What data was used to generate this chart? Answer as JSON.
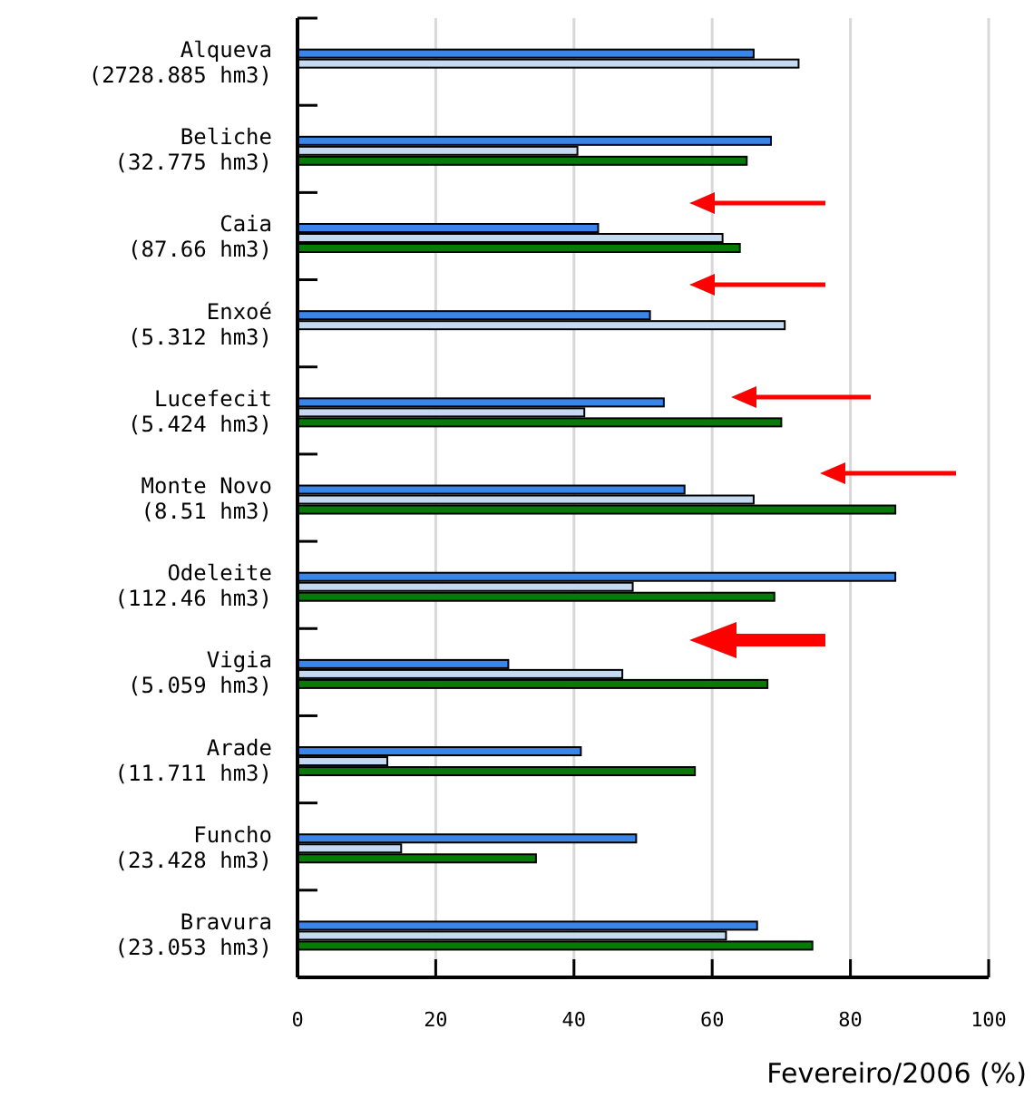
{
  "chart_data": {
    "type": "bar",
    "orientation": "horizontal",
    "xlabel": "Fevereiro/2006 (%)",
    "categories": [
      "Alqueva\n(2728.885 hm3)",
      "Beliche\n(32.775 hm3)",
      "Caia\n(87.66 hm3)",
      "Enxoé\n(5.312 hm3)",
      "Lucefecit\n(5.424 hm3)",
      "Monte Novo\n(8.51 hm3)",
      "Odeleite\n(112.46 hm3)",
      "Vigia\n(5.059 hm3)",
      "Arade\n(11.711 hm3)",
      "Funcho\n(23.428 hm3)",
      "Bravura\n(23.053 hm3)"
    ],
    "series": [
      {
        "color": "#3a86e8",
        "values": [
          66,
          68.5,
          43.5,
          51,
          53,
          56,
          86.5,
          30.5,
          41,
          49,
          66.5
        ]
      },
      {
        "color": "#c5d9f0",
        "values": [
          72.5,
          40.5,
          61.5,
          70.5,
          41.5,
          66,
          48.5,
          47,
          13,
          15,
          62
        ]
      },
      {
        "color": "#087a08",
        "values": [
          null,
          65,
          64,
          null,
          70,
          86.5,
          69,
          68,
          57.5,
          34.5,
          74.5
        ]
      }
    ],
    "xlim": [
      0,
      100
    ],
    "xticks": [
      0,
      20,
      40,
      60,
      80,
      100
    ],
    "grid": "x"
  }
}
